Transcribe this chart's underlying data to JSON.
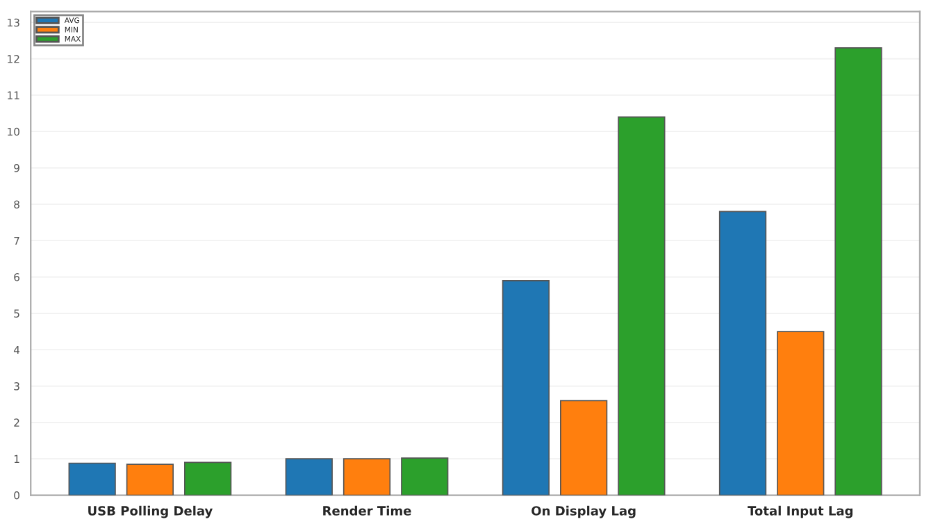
{
  "chart_data": {
    "type": "bar",
    "categories": [
      "USB Polling Delay",
      "Render Time",
      "On Display Lag",
      "Total Input Lag"
    ],
    "series": [
      {
        "name": "AVG",
        "color": "#1f77b4",
        "values": [
          0.88,
          1.0,
          5.9,
          7.8
        ]
      },
      {
        "name": "MIN",
        "color": "#ff7f0e",
        "values": [
          0.85,
          1.0,
          2.6,
          4.5
        ]
      },
      {
        "name": "MAX",
        "color": "#2ca02c",
        "values": [
          0.9,
          1.02,
          10.4,
          12.3
        ]
      }
    ],
    "ylim": [
      0,
      13.3
    ],
    "yticks": [
      0,
      1,
      2,
      3,
      4,
      5,
      6,
      7,
      8,
      9,
      10,
      11,
      12,
      13
    ],
    "grid": "y",
    "legend": "top left"
  }
}
